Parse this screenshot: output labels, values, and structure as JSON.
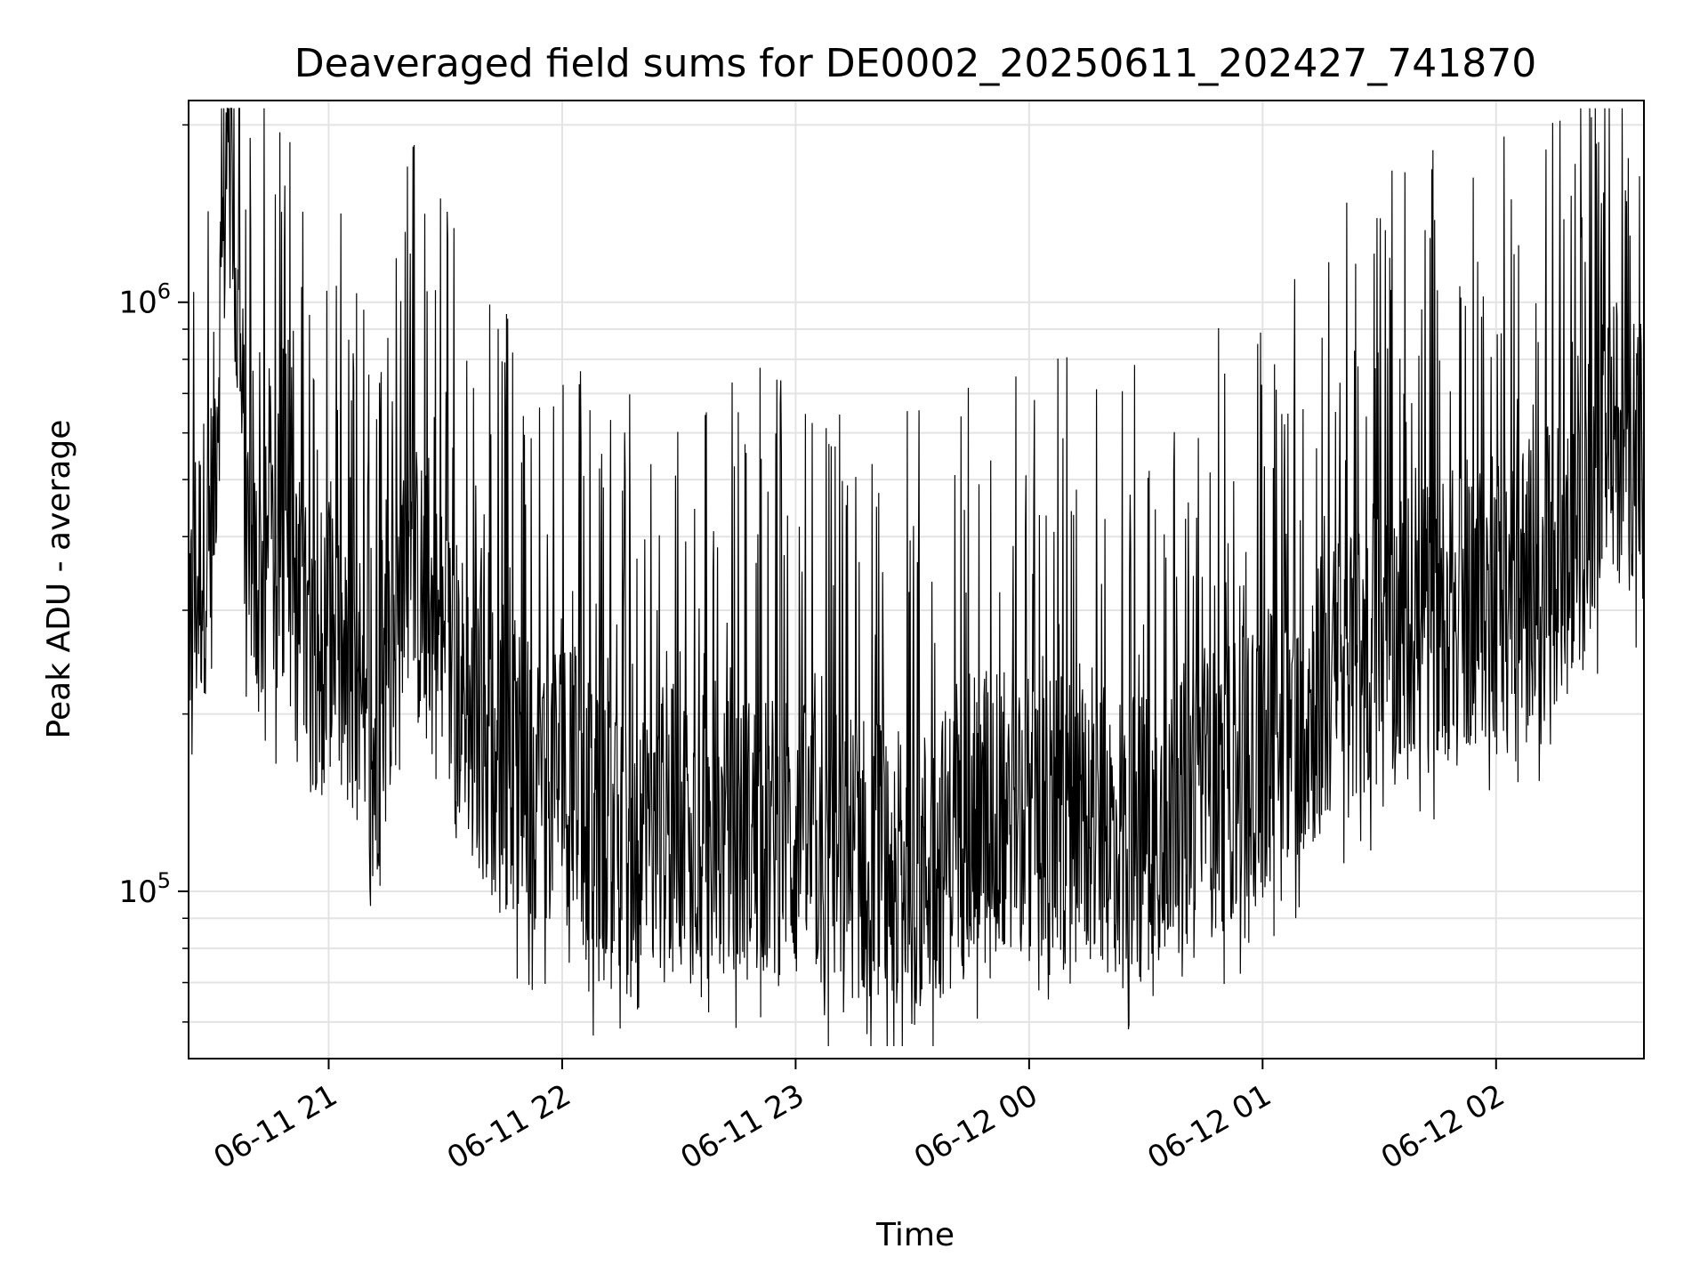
{
  "chart_data": {
    "type": "line",
    "title": "Deaveraged field sums for DE0002_20250611_202427_741870",
    "xlabel": "Time",
    "ylabel": "Peak ADU - average",
    "xlim": [
      "2025-06-11 20:24",
      "2025-06-12 02:38"
    ],
    "ylim": [
      52000,
      2200000
    ],
    "yscale": "log",
    "grid": true,
    "line_color": "#000000",
    "x_ticks": [
      {
        "value": "2025-06-11 21:00",
        "label": "06-11 21"
      },
      {
        "value": "2025-06-11 22:00",
        "label": "06-11 22"
      },
      {
        "value": "2025-06-11 23:00",
        "label": "06-11 23"
      },
      {
        "value": "2025-06-12 00:00",
        "label": "06-12 00"
      },
      {
        "value": "2025-06-12 01:00",
        "label": "06-12 01"
      },
      {
        "value": "2025-06-12 02:00",
        "label": "06-12 02"
      }
    ],
    "y_ticks": [
      {
        "value": 100000,
        "base": "10",
        "exp": "5"
      },
      {
        "value": 1000000,
        "base": "10",
        "exp": "6"
      }
    ],
    "series": [
      {
        "points": [
          [
            "2025-06-11 20:24",
            300000
          ],
          [
            "2025-06-11 20:30",
            420000
          ],
          [
            "2025-06-11 20:34",
            1950000
          ],
          [
            "2025-06-11 20:40",
            320000
          ],
          [
            "2025-06-11 20:48",
            380000
          ],
          [
            "2025-06-11 20:55",
            250000
          ],
          [
            "2025-06-11 21:00",
            290000
          ],
          [
            "2025-06-11 21:10",
            150000
          ],
          [
            "2025-06-11 21:20",
            360000
          ],
          [
            "2025-06-11 21:30",
            250000
          ],
          [
            "2025-06-11 21:40",
            180000
          ],
          [
            "2025-06-11 21:50",
            150000
          ],
          [
            "2025-06-11 22:00",
            160000
          ],
          [
            "2025-06-11 22:10",
            120000
          ],
          [
            "2025-06-11 22:20",
            110000
          ],
          [
            "2025-06-11 22:30",
            130000
          ],
          [
            "2025-06-11 22:40",
            120000
          ],
          [
            "2025-06-11 22:50",
            125000
          ],
          [
            "2025-06-11 23:00",
            120000
          ],
          [
            "2025-06-11 23:10",
            115000
          ],
          [
            "2025-06-11 23:20",
            115000
          ],
          [
            "2025-06-11 23:30",
            105000
          ],
          [
            "2025-06-11 23:40",
            120000
          ],
          [
            "2025-06-11 23:50",
            140000
          ],
          [
            "2025-06-12 00:00",
            135000
          ],
          [
            "2025-06-12 00:10",
            130000
          ],
          [
            "2025-06-12 00:20",
            125000
          ],
          [
            "2025-06-12 00:30",
            130000
          ],
          [
            "2025-06-12 00:40",
            140000
          ],
          [
            "2025-06-12 00:50",
            150000
          ],
          [
            "2025-06-12 01:00",
            170000
          ],
          [
            "2025-06-12 01:10",
            200000
          ],
          [
            "2025-06-12 01:20",
            230000
          ],
          [
            "2025-06-12 01:30",
            260000
          ],
          [
            "2025-06-12 01:40",
            280000
          ],
          [
            "2025-06-12 01:50",
            300000
          ],
          [
            "2025-06-12 02:00",
            320000
          ],
          [
            "2025-06-12 02:10",
            340000
          ],
          [
            "2025-06-12 02:20",
            360000
          ],
          [
            "2025-06-12 02:25",
            500000
          ],
          [
            "2025-06-12 02:30",
            600000
          ],
          [
            "2025-06-12 02:38",
            550000
          ]
        ]
      }
    ]
  }
}
